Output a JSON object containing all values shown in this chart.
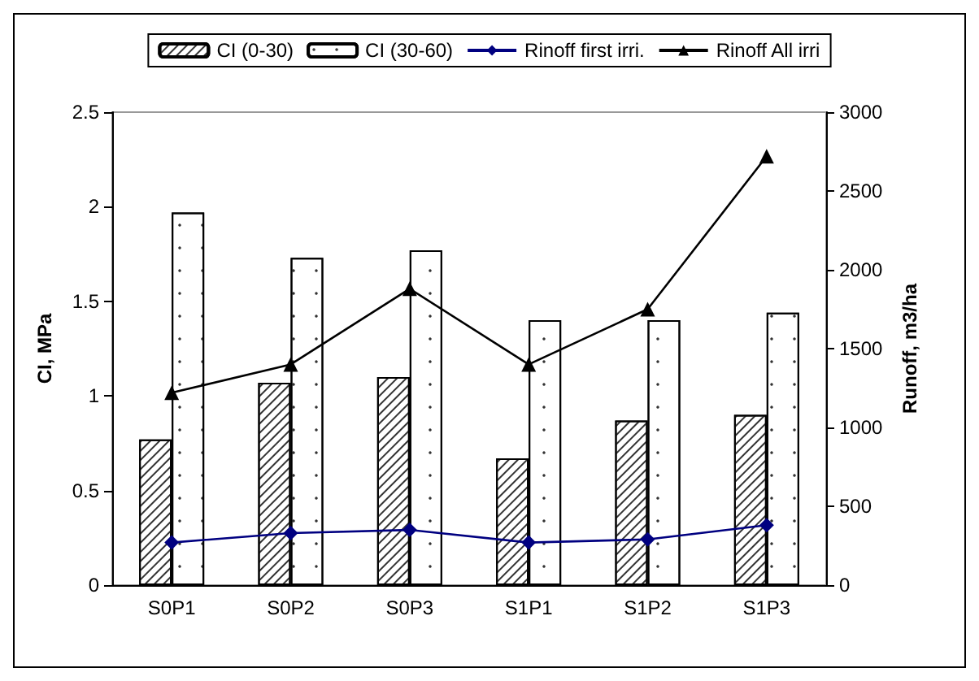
{
  "chart_data": {
    "type": "bar",
    "categories": [
      "S0P1",
      "S0P2",
      "S0P3",
      "S1P1",
      "S1P2",
      "S1P3"
    ],
    "ylabel": "CI, MPa",
    "y2label": "Runoff, m3/ha",
    "series": [
      {
        "name": "CI (0-30)",
        "color": "#ffffff",
        "values": [
          0.77,
          1.07,
          1.1,
          0.67,
          0.87,
          0.9
        ]
      },
      {
        "name": "CI (30-60)",
        "color": "#ffffff",
        "values": [
          1.97,
          1.73,
          1.77,
          1.4,
          1.4,
          1.44
        ]
      },
      {
        "name": "Rinoff first irri.",
        "type": "line",
        "axis": "y2",
        "marker": "diamond",
        "color": "#000080",
        "values": [
          270,
          330,
          350,
          270,
          290,
          380
        ]
      },
      {
        "name": "Rinoff All irri",
        "type": "line",
        "axis": "y2",
        "marker": "triangle",
        "color": "#000000",
        "values": [
          1220,
          1400,
          1880,
          1400,
          1750,
          2720
        ]
      }
    ],
    "ylim": [
      0,
      2.5
    ],
    "yticks": [
      0,
      0.5,
      1,
      1.5,
      2,
      2.5
    ],
    "y2lim": [
      0,
      3000
    ],
    "y2ticks": [
      0,
      500,
      1000,
      1500,
      2000,
      2500,
      3000
    ],
    "grid": false,
    "legend": "top"
  }
}
